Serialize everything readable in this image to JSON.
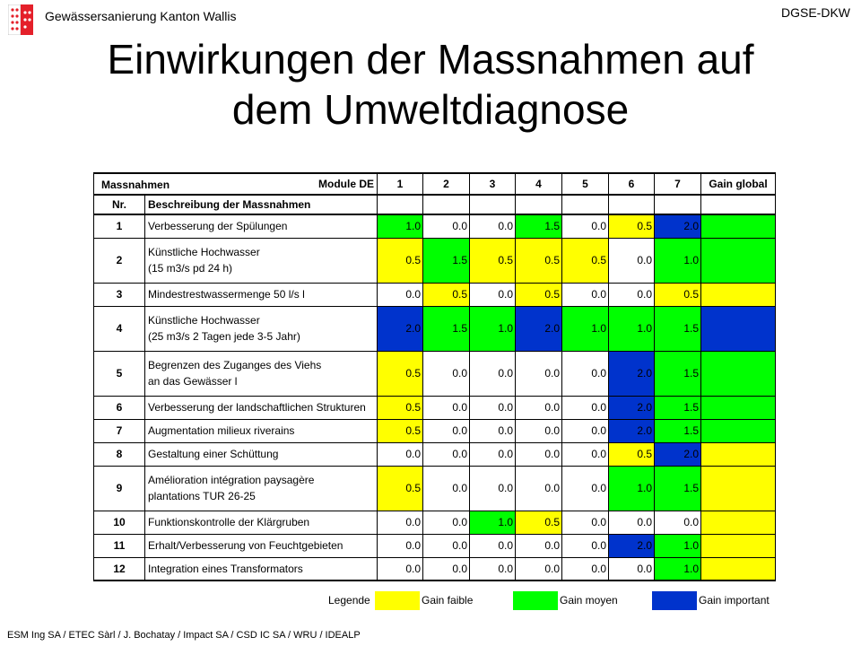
{
  "header": {
    "org": "Gewässersanierung Kanton Wallis",
    "code": "DGSE-DKW"
  },
  "title_line1": "Einwirkungen der Massnahmen auf",
  "title_line2": "dem Umweltdiagnose",
  "colors": {
    "gelb": "#ffff00",
    "gruen": "#00ff00",
    "blau": "#0033cc",
    "logo_red": "#e4202a"
  },
  "table": {
    "h_massnahmen": "Massnahmen",
    "h_module": "Module DE",
    "h_modules": [
      "1",
      "2",
      "3",
      "4",
      "5",
      "6",
      "7"
    ],
    "h_gain": "Gain global",
    "h_nr": "Nr.",
    "h_desc": "Beschreibung der Massnahmen",
    "rows": [
      {
        "nr": "1",
        "desc": [
          "Verbesserung der Spülungen"
        ],
        "values": [
          "1.0",
          "0.0",
          "0.0",
          "1.5",
          "0.0",
          "0.5",
          "2.0"
        ],
        "gain": "gruen"
      },
      {
        "nr": "2",
        "desc": [
          "Künstliche Hochwasser",
          "(15 m3/s pd 24 h)"
        ],
        "values": [
          "0.5",
          "1.5",
          "0.5",
          "0.5",
          "0.5",
          "0.0",
          "1.0"
        ],
        "gain": "gruen"
      },
      {
        "nr": "3",
        "desc": [
          "Mindestrestwassermenge 50 l/s      l"
        ],
        "values": [
          "0.0",
          "0.5",
          "0.0",
          "0.5",
          "0.0",
          "0.0",
          "0.5"
        ],
        "gain": "gelb"
      },
      {
        "nr": "4",
        "desc": [
          "Künstliche Hochwasser",
          "(25 m3/s  2 Tagen jede 3-5 Jahr)"
        ],
        "values": [
          "2.0",
          "1.5",
          "1.0",
          "2.0",
          "1.0",
          "1.0",
          "1.5"
        ],
        "gain": "blau"
      },
      {
        "nr": "5",
        "desc": [
          "Begrenzen des Zuganges des Viehs",
          "an das Gewässer l"
        ],
        "values": [
          "0.5",
          "0.0",
          "0.0",
          "0.0",
          "0.0",
          "2.0",
          "1.5"
        ],
        "gain": "gruen"
      },
      {
        "nr": "6",
        "desc": [
          "Verbesserung der landschaftlichen Strukturen"
        ],
        "values": [
          "0.5",
          "0.0",
          "0.0",
          "0.0",
          "0.0",
          "2.0",
          "1.5"
        ],
        "gain": "gruen"
      },
      {
        "nr": "7",
        "desc": [
          "Augmentation milieux riverains"
        ],
        "values": [
          "0.5",
          "0.0",
          "0.0",
          "0.0",
          "0.0",
          "2.0",
          "1.5"
        ],
        "gain": "gruen"
      },
      {
        "nr": "8",
        "desc": [
          "Gestaltung einer Schüttung"
        ],
        "values": [
          "0.0",
          "0.0",
          "0.0",
          "0.0",
          "0.0",
          "0.5",
          "2.0"
        ],
        "gain": "gelb"
      },
      {
        "nr": "9",
        "desc": [
          "Amélioration intégration paysagère",
          "plantations TUR 26-25"
        ],
        "values": [
          "0.5",
          "0.0",
          "0.0",
          "0.0",
          "0.0",
          "1.0",
          "1.5"
        ],
        "gain": "gelb"
      },
      {
        "nr": "10",
        "desc": [
          "Funktionskontrolle der Klärgruben"
        ],
        "values": [
          "0.0",
          "0.0",
          "1.0",
          "0.5",
          "0.0",
          "0.0",
          "0.0"
        ],
        "gain": "gelb"
      },
      {
        "nr": "11",
        "desc": [
          "Erhalt/Verbesserung von Feuchtgebieten"
        ],
        "values": [
          "0.0",
          "0.0",
          "0.0",
          "0.0",
          "0.0",
          "2.0",
          "1.0"
        ],
        "gain": "gelb"
      },
      {
        "nr": "12",
        "desc": [
          "Integration eines Transformators"
        ],
        "values": [
          "0.0",
          "0.0",
          "0.0",
          "0.0",
          "0.0",
          "0.0",
          "1.0"
        ],
        "gain": "gelb"
      }
    ]
  },
  "legend": {
    "label": "Legende",
    "faible": "Gain faible",
    "moyen": "Gain moyen",
    "important": "Gain important"
  },
  "footer": "ESM Ing SA / ETEC Sàrl / J. Bochatay / Impact SA / CSD IC SA / WRU / IDEALP"
}
